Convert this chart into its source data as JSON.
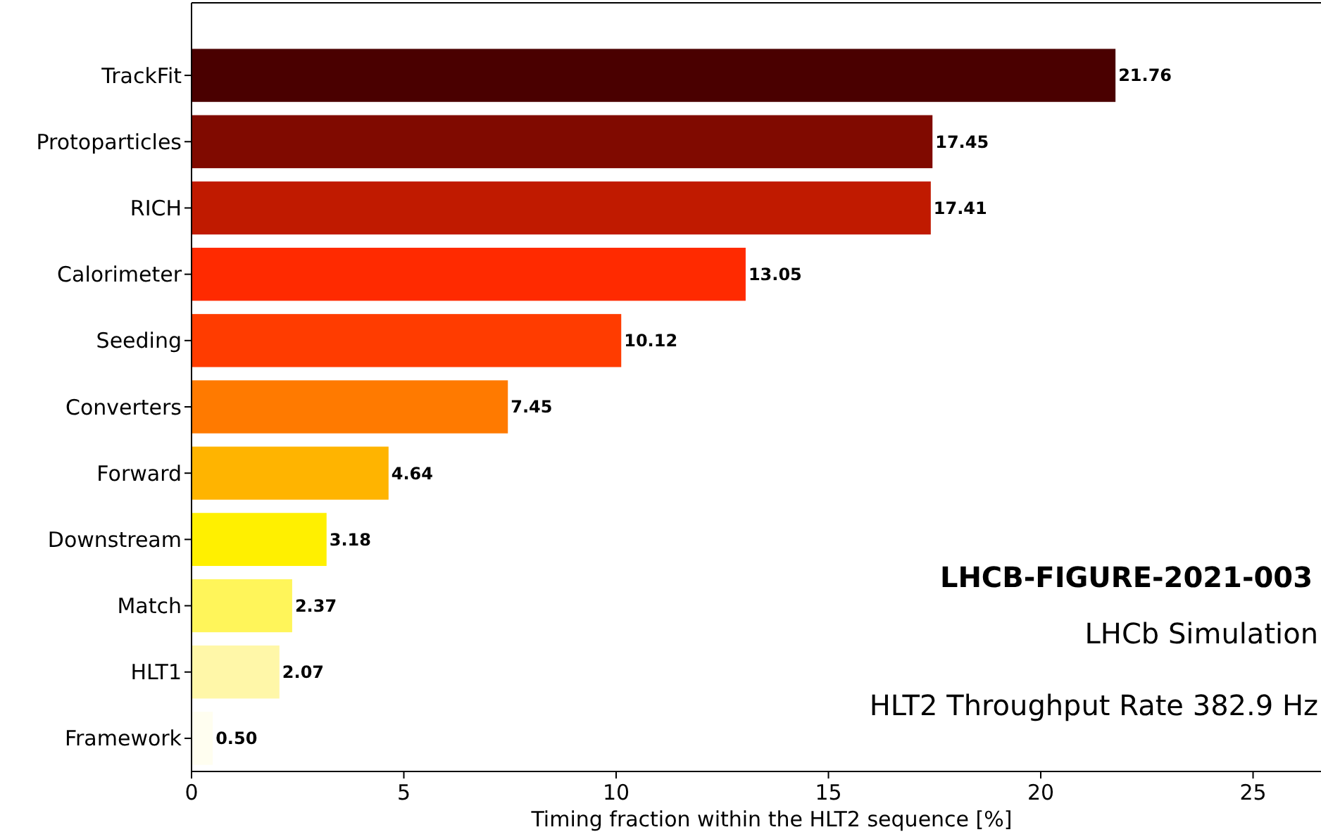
{
  "chart_data": {
    "type": "bar",
    "orientation": "horizontal",
    "xlabel": "Timing fraction within the HLT2 sequence [%]",
    "categories": [
      "TrackFit",
      "Protoparticles",
      "RICH",
      "Calorimeter",
      "Seeding",
      "Converters",
      "Forward",
      "Downstream",
      "Match",
      "HLT1",
      "Framework"
    ],
    "values": [
      21.76,
      17.45,
      17.41,
      13.05,
      10.12,
      7.45,
      4.64,
      3.18,
      2.37,
      2.07,
      0.5
    ],
    "colors": [
      "#4a0000",
      "#800a00",
      "#c01a00",
      "#ff2a00",
      "#ff3c00",
      "#ff7a00",
      "#ffb400",
      "#fff000",
      "#fff55a",
      "#fff7a8",
      "#fffef0"
    ],
    "value_labels": [
      "21.76",
      "17.45",
      "17.41",
      "13.05",
      "10.12",
      "7.45",
      "4.64",
      "3.18",
      "2.37",
      "2.07",
      "0.50"
    ],
    "xlim": [
      0,
      26.6
    ],
    "xticks": [
      0,
      5,
      10,
      15,
      20,
      25
    ],
    "annotations": [
      "LHCB-FIGURE-2021-003",
      "LHCb Simulation",
      "HLT2 Throughput Rate 382.9 Hz"
    ]
  }
}
